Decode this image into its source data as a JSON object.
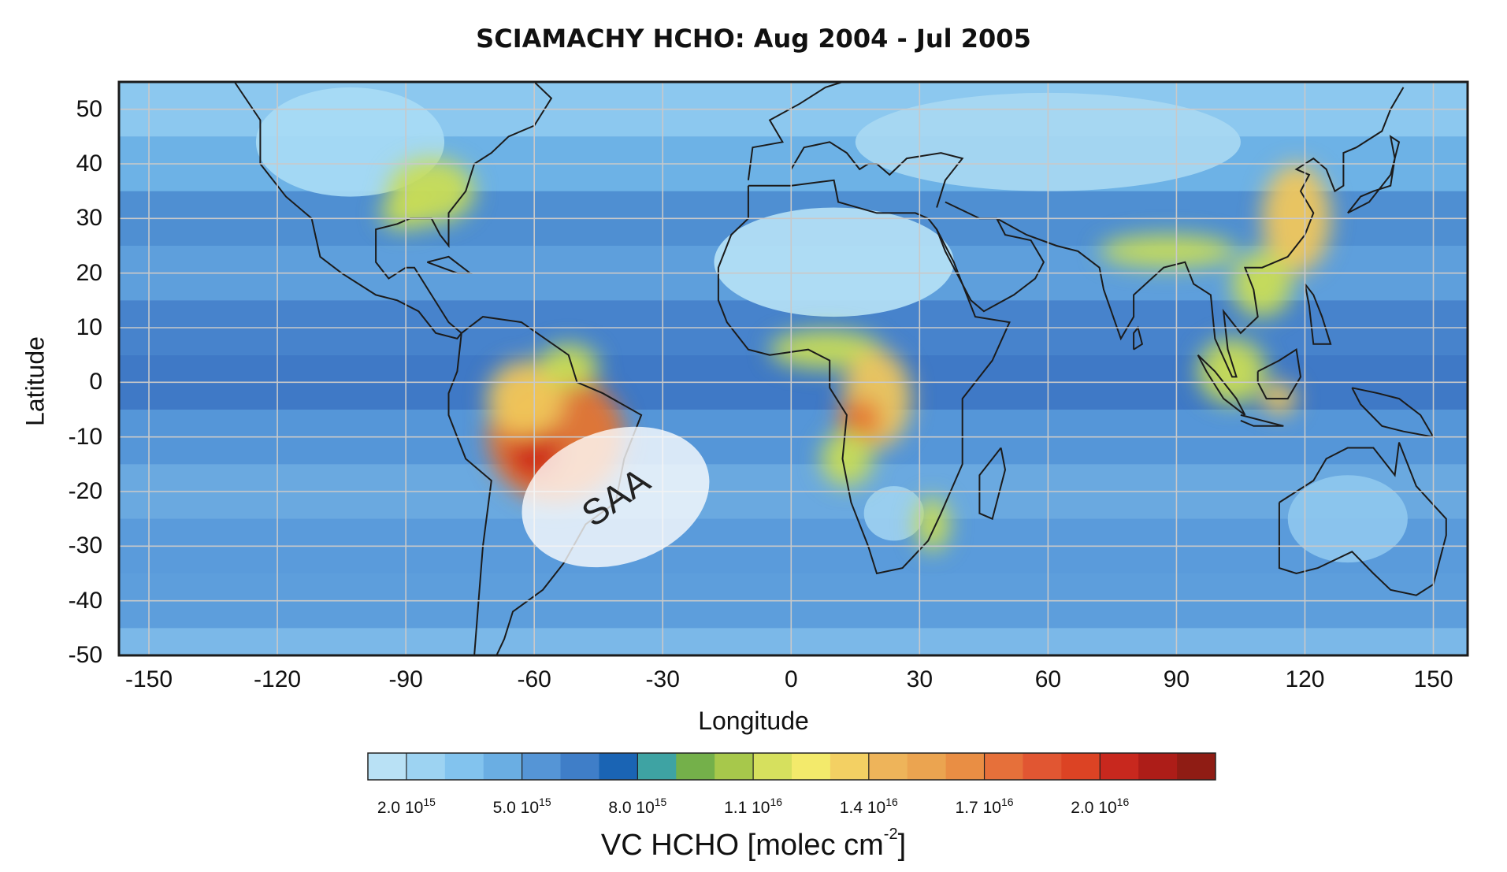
{
  "title": "SCIAMACHY HCHO: Aug 2004 - Jul 2005",
  "x_axis": {
    "label": "Longitude",
    "range": [
      -157,
      158
    ],
    "ticks": [
      "-150",
      "-120",
      "-90",
      "-60",
      "-30",
      "0",
      "30",
      "60",
      "90",
      "120",
      "150"
    ],
    "tick_values": [
      -150,
      -120,
      -90,
      -60,
      -30,
      0,
      30,
      60,
      90,
      120,
      150
    ]
  },
  "y_axis": {
    "label": "Latitude",
    "range": [
      -50,
      55
    ],
    "ticks": [
      "50",
      "40",
      "30",
      "20",
      "10",
      "0",
      "-10",
      "-20",
      "-30",
      "-40",
      "-50"
    ],
    "tick_values": [
      50,
      40,
      30,
      20,
      10,
      0,
      -10,
      -20,
      -30,
      -40,
      -50
    ]
  },
  "grid": true,
  "annotation": {
    "text": "SAA",
    "center_lon": -41,
    "center_lat": -21
  },
  "colorbar": {
    "colors": [
      "#b9e1f5",
      "#9dd3f2",
      "#82c3ee",
      "#6aaee3",
      "#5595d6",
      "#3f7ec8",
      "#1a64b4",
      "#3ea3a3",
      "#74b04a",
      "#a7c84b",
      "#d6e05e",
      "#f3ea6b",
      "#f3d063",
      "#eeb45a",
      "#eba450",
      "#e98e44",
      "#e6703a",
      "#e15632",
      "#dc4324",
      "#c8281e",
      "#ad1d18",
      "#8f1c14"
    ],
    "labels": [
      {
        "base": "2.0 10",
        "exp": "15"
      },
      {
        "base": "5.0 10",
        "exp": "15"
      },
      {
        "base": "8.0 10",
        "exp": "15"
      },
      {
        "base": "1.1 10",
        "exp": "16"
      },
      {
        "base": "1.4 10",
        "exp": "16"
      },
      {
        "base": "1.7 10",
        "exp": "16"
      },
      {
        "base": "2.0 10",
        "exp": "16"
      }
    ],
    "title_base": "VC HCHO [molec cm",
    "title_exp": "-2",
    "title_end": "]"
  },
  "hotspots": [
    {
      "lon": -55,
      "lat": -10,
      "rx": 16,
      "ry": 12,
      "level": "high"
    },
    {
      "lon": -60,
      "lat": -13,
      "rx": 6,
      "ry": 5,
      "level": "max"
    },
    {
      "lon": -62,
      "lat": -3,
      "rx": 9,
      "ry": 7,
      "level": "mid"
    },
    {
      "lon": -52,
      "lat": 3,
      "rx": 7,
      "ry": 4,
      "level": "low"
    },
    {
      "lon": -84,
      "lat": 35,
      "rx": 10,
      "ry": 6,
      "level": "low"
    },
    {
      "lon": -90,
      "lat": 31,
      "rx": 6,
      "ry": 3,
      "level": "low"
    },
    {
      "lon": 8,
      "lat": 6,
      "rx": 13,
      "ry": 3.5,
      "level": "low"
    },
    {
      "lon": 20,
      "lat": -3,
      "rx": 8,
      "ry": 9,
      "level": "mid"
    },
    {
      "lon": 16,
      "lat": -7,
      "rx": 5,
      "ry": 4,
      "level": "high"
    },
    {
      "lon": 13,
      "lat": -14,
      "rx": 6,
      "ry": 5,
      "level": "low"
    },
    {
      "lon": 33,
      "lat": -26,
      "rx": 4,
      "ry": 5,
      "level": "low"
    },
    {
      "lon": 88,
      "lat": 24,
      "rx": 16,
      "ry": 3,
      "level": "low"
    },
    {
      "lon": 118,
      "lat": 30,
      "rx": 8,
      "ry": 10,
      "level": "mid"
    },
    {
      "lon": 110,
      "lat": 18,
      "rx": 7,
      "ry": 6,
      "level": "low"
    },
    {
      "lon": 103,
      "lat": 2,
      "rx": 8,
      "ry": 6,
      "level": "low"
    },
    {
      "lon": 114,
      "lat": -3,
      "rx": 4,
      "ry": 3,
      "level": "mid"
    }
  ]
}
